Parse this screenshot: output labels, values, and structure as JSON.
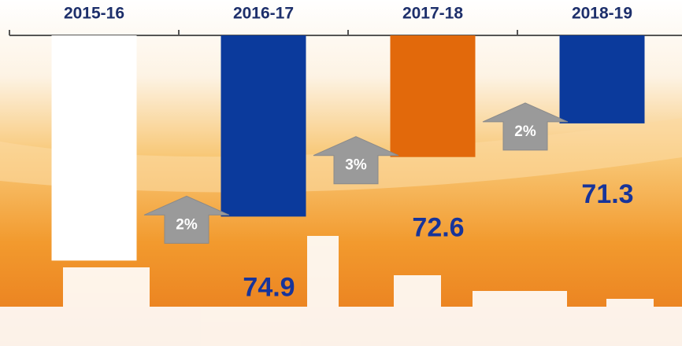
{
  "chart_data": {
    "type": "bar",
    "categories": [
      "2015-16",
      "2016-17",
      "2017-18",
      "2018-19"
    ],
    "values": [
      76.6,
      74.9,
      72.6,
      71.3
    ],
    "value_labels": [
      null,
      "74.9",
      "72.6",
      "71.3"
    ],
    "colors": [
      "#ffffff",
      "#0b3a9c",
      "#e2690b",
      "#0b3a9c"
    ],
    "ylim": [
      67.9,
      79.9
    ],
    "annotations": [
      "2%",
      "3%",
      "2%"
    ]
  }
}
